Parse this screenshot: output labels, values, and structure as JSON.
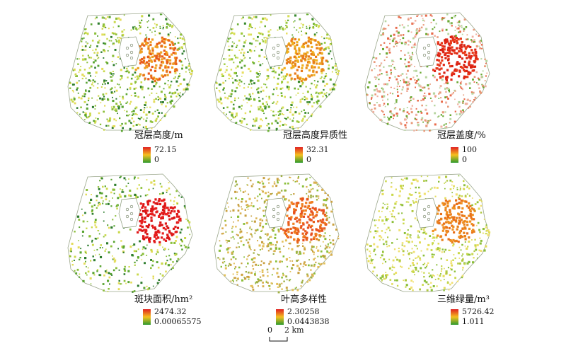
{
  "panels": [
    {
      "title": "冠层高度/m",
      "legend_max": "72.15",
      "legend_min": "0",
      "theme": "height"
    },
    {
      "title": "冠层高度异质性",
      "legend_max": "32.31",
      "legend_min": "0",
      "theme": "hetero"
    },
    {
      "title": "冠层盖度/%",
      "legend_max": "100",
      "legend_min": "0",
      "theme": "cover"
    },
    {
      "title": "斑块面积/hm²",
      "legend_max": "2474.32",
      "legend_min": "0.00065575",
      "theme": "patch"
    },
    {
      "title": "叶高多样性",
      "legend_max": "2.30258",
      "legend_min": "0.0443838",
      "theme": "diversity"
    },
    {
      "title": "三维绿量/m³",
      "legend_max": "5726.42",
      "legend_min": "1.011",
      "theme": "volume"
    }
  ],
  "scale_bar": {
    "start": "0",
    "end": "2 km"
  },
  "colors": {
    "high": "#e02020",
    "mid": "#f5c020",
    "low": "#2e9a2e"
  }
}
